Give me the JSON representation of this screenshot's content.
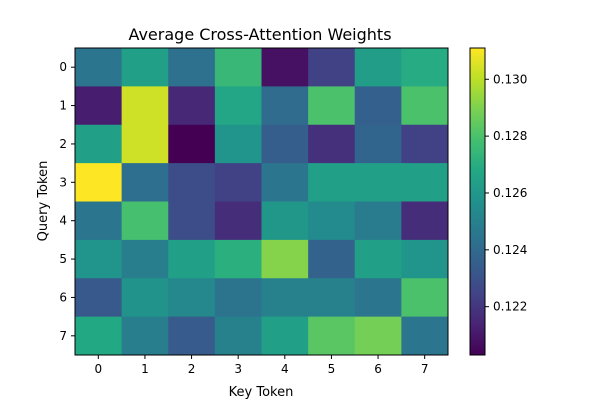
{
  "chart_data": {
    "type": "heatmap",
    "title": "Average Cross-Attention Weights",
    "xlabel": "Key Token",
    "ylabel": "Query Token",
    "x_ticks": [
      "0",
      "1",
      "2",
      "3",
      "4",
      "5",
      "6",
      "7"
    ],
    "y_ticks": [
      "0",
      "1",
      "2",
      "3",
      "4",
      "5",
      "6",
      "7"
    ],
    "colormap": "viridis",
    "vmin": 0.1203,
    "vmax": 0.1311,
    "colorbar_ticks": [
      "0.122",
      "0.124",
      "0.126",
      "0.128",
      "0.130"
    ],
    "colorbar_tick_values": [
      0.122,
      0.124,
      0.126,
      0.128,
      0.13
    ],
    "values": [
      [
        0.1245,
        0.1264,
        0.1243,
        0.1275,
        0.1208,
        0.1224,
        0.1263,
        0.1269
      ],
      [
        0.1212,
        0.1303,
        0.1215,
        0.1267,
        0.1241,
        0.128,
        0.1236,
        0.128
      ],
      [
        0.1264,
        0.1303,
        0.1203,
        0.1259,
        0.1235,
        0.1218,
        0.1238,
        0.1224
      ],
      [
        0.1311,
        0.1242,
        0.1228,
        0.1224,
        0.1245,
        0.1264,
        0.1264,
        0.1264
      ],
      [
        0.1245,
        0.1279,
        0.1228,
        0.1217,
        0.126,
        0.1254,
        0.1248,
        0.1217
      ],
      [
        0.1259,
        0.1249,
        0.1264,
        0.1271,
        0.1291,
        0.1237,
        0.1264,
        0.1259
      ],
      [
        0.1233,
        0.1258,
        0.1253,
        0.1244,
        0.125,
        0.125,
        0.1245,
        0.128
      ],
      [
        0.1268,
        0.1249,
        0.1234,
        0.125,
        0.1264,
        0.1283,
        0.1288,
        0.1245
      ]
    ]
  }
}
